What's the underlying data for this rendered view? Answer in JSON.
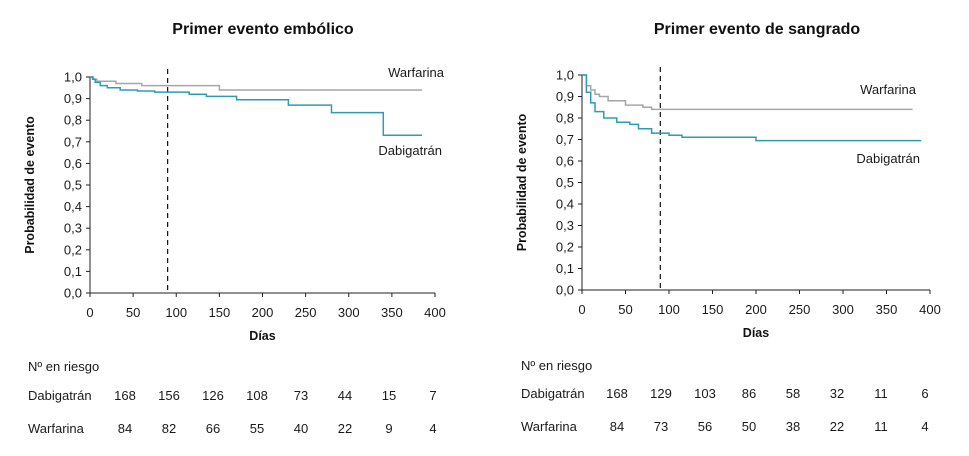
{
  "chart_data": [
    {
      "type": "line",
      "title": "Primer evento embólico",
      "xlabel": "Días",
      "ylabel": "Probabilidad de evento",
      "xlim": [
        0,
        400
      ],
      "ylim": [
        0,
        1.0
      ],
      "xticks": [
        "0",
        "50",
        "100",
        "150",
        "200",
        "250",
        "300",
        "350",
        "400"
      ],
      "yticks": [
        "0,0",
        "0,1",
        "0,2",
        "0,3",
        "0,4",
        "0,5",
        "0,6",
        "0,7",
        "0,8",
        "0,9",
        "1,0"
      ],
      "grid": false,
      "reference_line_x": 90,
      "series": [
        {
          "name": "Warfarina",
          "color": "#a6a6a6",
          "step": true,
          "x": [
            0,
            4,
            8,
            30,
            60,
            150,
            385
          ],
          "y": [
            1.0,
            0.99,
            0.98,
            0.97,
            0.96,
            0.94,
            0.94
          ]
        },
        {
          "name": "Dabigatrán",
          "color": "#2e9bb5",
          "step": true,
          "x": [
            0,
            3,
            6,
            12,
            20,
            35,
            55,
            75,
            115,
            135,
            170,
            230,
            280,
            340,
            385
          ],
          "y": [
            1.0,
            0.99,
            0.975,
            0.96,
            0.95,
            0.94,
            0.935,
            0.93,
            0.92,
            0.91,
            0.895,
            0.87,
            0.835,
            0.73,
            0.73
          ]
        }
      ],
      "risk_table": {
        "header": "Nº en riesgo",
        "rows": [
          {
            "label": "Dabigatrán",
            "values": [
              "168",
              "156",
              "126",
              "108",
              "73",
              "44",
              "15",
              "7"
            ]
          },
          {
            "label": "Warfarina",
            "values": [
              "84",
              "82",
              "66",
              "55",
              "40",
              "22",
              "9",
              "4"
            ]
          }
        ]
      }
    },
    {
      "type": "line",
      "title": "Primer evento de sangrado",
      "xlabel": "Días",
      "ylabel": "Probabilidad de evento",
      "xlim": [
        0,
        400
      ],
      "ylim": [
        0,
        1.0
      ],
      "xticks": [
        "0",
        "50",
        "100",
        "150",
        "200",
        "250",
        "300",
        "350",
        "400"
      ],
      "yticks": [
        "0,0",
        "0,1",
        "0,2",
        "0,3",
        "0,4",
        "0,5",
        "0,6",
        "0,7",
        "0,8",
        "0,9",
        "1,0"
      ],
      "grid": false,
      "reference_line_x": 90,
      "series": [
        {
          "name": "Warfarina",
          "color": "#a6a6a6",
          "step": true,
          "x": [
            0,
            5,
            10,
            15,
            20,
            30,
            50,
            70,
            80,
            380
          ],
          "y": [
            1.0,
            0.95,
            0.93,
            0.91,
            0.9,
            0.88,
            0.86,
            0.85,
            0.84,
            0.84
          ]
        },
        {
          "name": "Dabigatrán",
          "color": "#2e9bb5",
          "step": true,
          "x": [
            0,
            5,
            10,
            15,
            25,
            40,
            55,
            65,
            80,
            100,
            115,
            200,
            390
          ],
          "y": [
            1.0,
            0.92,
            0.87,
            0.83,
            0.8,
            0.78,
            0.77,
            0.75,
            0.73,
            0.72,
            0.71,
            0.695,
            0.695
          ]
        }
      ],
      "risk_table": {
        "header": "Nº en riesgo",
        "rows": [
          {
            "label": "Dabigatrán",
            "values": [
              "168",
              "129",
              "103",
              "86",
              "58",
              "32",
              "11",
              "6"
            ]
          },
          {
            "label": "Warfarina",
            "values": [
              "84",
              "73",
              "56",
              "50",
              "38",
              "22",
              "11",
              "4"
            ]
          }
        ]
      }
    }
  ]
}
